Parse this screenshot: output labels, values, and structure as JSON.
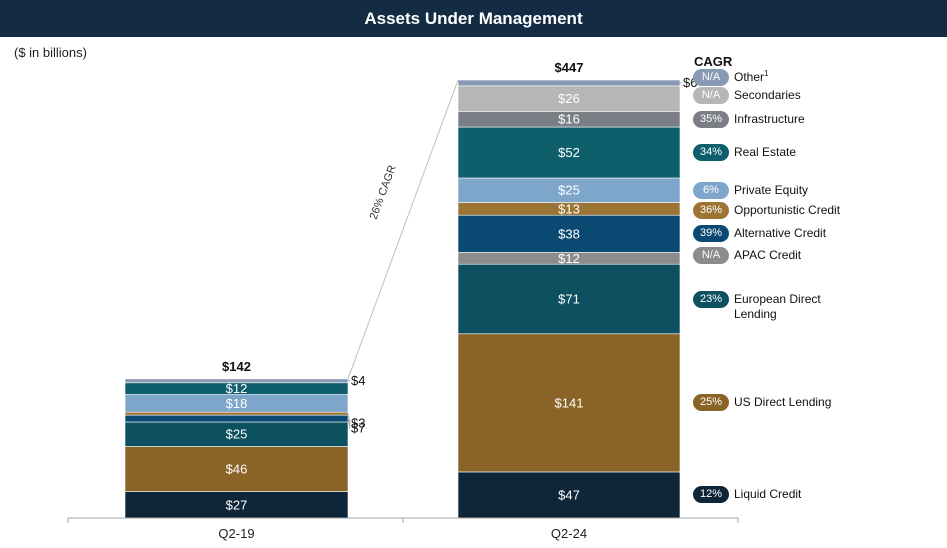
{
  "header": {
    "title": "Assets Under Management",
    "units": "($ in billions)"
  },
  "chart_data": {
    "type": "bar",
    "stacked": true,
    "title": "Assets Under Management",
    "ylabel": "($ in billions)",
    "categories": [
      "Q2-19",
      "Q2-24"
    ],
    "totals": [
      "$142",
      "$447"
    ],
    "totals_values": [
      142,
      447
    ],
    "ylim": [
      0,
      447
    ],
    "cagr_annotation": "26% CAGR",
    "legend_title": "CAGR",
    "series": [
      {
        "name": "Liquid Credit",
        "cagr": "12%",
        "color": "#0e2638",
        "values": [
          27,
          47
        ],
        "labels": [
          "$27",
          "$47"
        ]
      },
      {
        "name": "US Direct Lending",
        "cagr": "25%",
        "color": "#8a6327",
        "values": [
          46,
          141
        ],
        "labels": [
          "$46",
          "$141"
        ]
      },
      {
        "name": "European Direct Lending",
        "name_lines": [
          "European Direct",
          "Lending"
        ],
        "cagr": "23%",
        "color": "#0d5060",
        "values": [
          25,
          71
        ],
        "labels": [
          "$25",
          "$71"
        ]
      },
      {
        "name": "APAC Credit",
        "cagr": "N/A",
        "color": "#8a8c8e",
        "values": [
          0,
          12
        ],
        "labels": [
          "",
          "$12"
        ]
      },
      {
        "name": "Alternative Credit",
        "cagr": "39%",
        "color": "#0a4a72",
        "values": [
          7,
          38
        ],
        "labels": [
          "$7",
          "$38"
        ]
      },
      {
        "name": "Opportunistic Credit",
        "cagr": "36%",
        "color": "#9c7535",
        "values": [
          3,
          13
        ],
        "labels": [
          "$3",
          "$13"
        ]
      },
      {
        "name": "Private Equity",
        "cagr": "6%",
        "color": "#7ea6cb",
        "values": [
          18,
          25
        ],
        "labels": [
          "$18",
          "$25"
        ]
      },
      {
        "name": "Real Estate",
        "cagr": "34%",
        "color": "#0e5e6c",
        "values": [
          12,
          52
        ],
        "labels": [
          "$12",
          "$52"
        ]
      },
      {
        "name": "Infrastructure",
        "cagr": "35%",
        "color": "#7b7f85",
        "values": [
          0,
          16
        ],
        "labels": [
          "",
          "$16"
        ]
      },
      {
        "name": "Secondaries",
        "cagr": "N/A",
        "color": "#b5b6b8",
        "values": [
          0,
          26
        ],
        "labels": [
          "",
          "$26"
        ]
      },
      {
        "name": "Other",
        "sup": "1",
        "cagr": "N/A",
        "color": "#8799b3",
        "values": [
          4,
          6
        ],
        "labels": [
          "$4",
          "$6"
        ]
      }
    ]
  }
}
